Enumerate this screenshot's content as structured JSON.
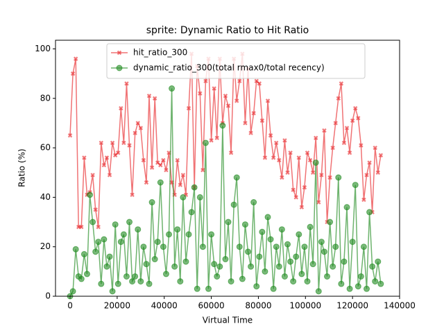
{
  "chart_data": {
    "type": "line",
    "title": "sprite: Dynamic Ratio to Hit Ratio",
    "x_label": "Virtual Time",
    "y_label": "Ratio (%)",
    "x": [
      0,
      1200,
      2400,
      3600,
      4800,
      6000,
      7200,
      8400,
      9600,
      10800,
      12000,
      13200,
      14400,
      15600,
      16800,
      18000,
      19200,
      20400,
      21600,
      22800,
      24000,
      25200,
      26400,
      27600,
      28800,
      30000,
      31200,
      32400,
      33600,
      34800,
      36000,
      37200,
      38400,
      39600,
      40800,
      42000,
      43200,
      44400,
      45600,
      46800,
      48000,
      49200,
      50400,
      51600,
      52800,
      54000,
      55200,
      56400,
      57600,
      58800,
      60000,
      61200,
      62400,
      63600,
      64800,
      66000,
      67200,
      68400,
      69600,
      70800,
      72000,
      73200,
      74400,
      75600,
      76800,
      78000,
      79200,
      80400,
      81600,
      82800,
      84000,
      85200,
      86400,
      87600,
      88800,
      90000,
      91200,
      92400,
      93600,
      94800,
      96000,
      97200,
      98400,
      99600,
      100800,
      102000,
      103200,
      104400,
      105600,
      106800,
      108000,
      109200,
      110400,
      111600,
      112800,
      114000,
      115200,
      116400,
      117600,
      118800,
      120000,
      121200,
      122400,
      123600,
      124800,
      126000,
      127200,
      128400,
      129600,
      130800,
      132000
    ],
    "series": [
      {
        "name": "hit_ratio_300",
        "color": "#e8272a",
        "marker": "x",
        "values": [
          65,
          90,
          96,
          28,
          28,
          56,
          41,
          42,
          49,
          35,
          28,
          62,
          53,
          56,
          49,
          62,
          57,
          58,
          76,
          62,
          86,
          61,
          41,
          66,
          70,
          68,
          55,
          46,
          81,
          52,
          80,
          54,
          53,
          55,
          51,
          58,
          46,
          41,
          55,
          45,
          49,
          41,
          76,
          98,
          44,
          93,
          82,
          51,
          87,
          96,
          63,
          84,
          64,
          96,
          70,
          81,
          77,
          58,
          96,
          79,
          87,
          98,
          70,
          92,
          66,
          74,
          87,
          86,
          71,
          56,
          79,
          65,
          56,
          62,
          55,
          48,
          63,
          50,
          58,
          43,
          40,
          56,
          36,
          44,
          58,
          55,
          50,
          64,
          38,
          49,
          67,
          30,
          48,
          60,
          70,
          80,
          86,
          62,
          68,
          58,
          71,
          76,
          72,
          61,
          39,
          49,
          54,
          34,
          60,
          50,
          57
        ]
      },
      {
        "name": "dynamic_ratio_300(total rmax0/total recency)",
        "color": "#1f8a1f",
        "marker": "o",
        "values": [
          0,
          2,
          19,
          8,
          7,
          17,
          9,
          41,
          30,
          18,
          22,
          5,
          23,
          12,
          16,
          2,
          29,
          5,
          22,
          25,
          8,
          30,
          6,
          8,
          27,
          6,
          20,
          13,
          5,
          38,
          15,
          22,
          46,
          20,
          9,
          25,
          84,
          12,
          27,
          6,
          40,
          14,
          25,
          34,
          44,
          3,
          40,
          20,
          62,
          3,
          25,
          13,
          8,
          12,
          69,
          15,
          30,
          6,
          37,
          48,
          20,
          7,
          29,
          18,
          12,
          38,
          4,
          16,
          26,
          10,
          32,
          23,
          3,
          20,
          12,
          27,
          8,
          21,
          14,
          6,
          16,
          25,
          9,
          20,
          6,
          28,
          13,
          54,
          2,
          22,
          18,
          8,
          30,
          12,
          20,
          48,
          5,
          14,
          36,
          3,
          22,
          45,
          4,
          8,
          20,
          3,
          34,
          12,
          6,
          14,
          5
        ]
      }
    ],
    "xlim": [
      -6200,
      140000
    ],
    "ylim": [
      0,
      103.5
    ],
    "xticks": [
      0,
      20000,
      40000,
      60000,
      80000,
      100000,
      120000,
      140000
    ],
    "yticks": [
      0,
      20,
      40,
      60,
      80,
      100
    ],
    "legend": "upper center",
    "grid": false
  }
}
